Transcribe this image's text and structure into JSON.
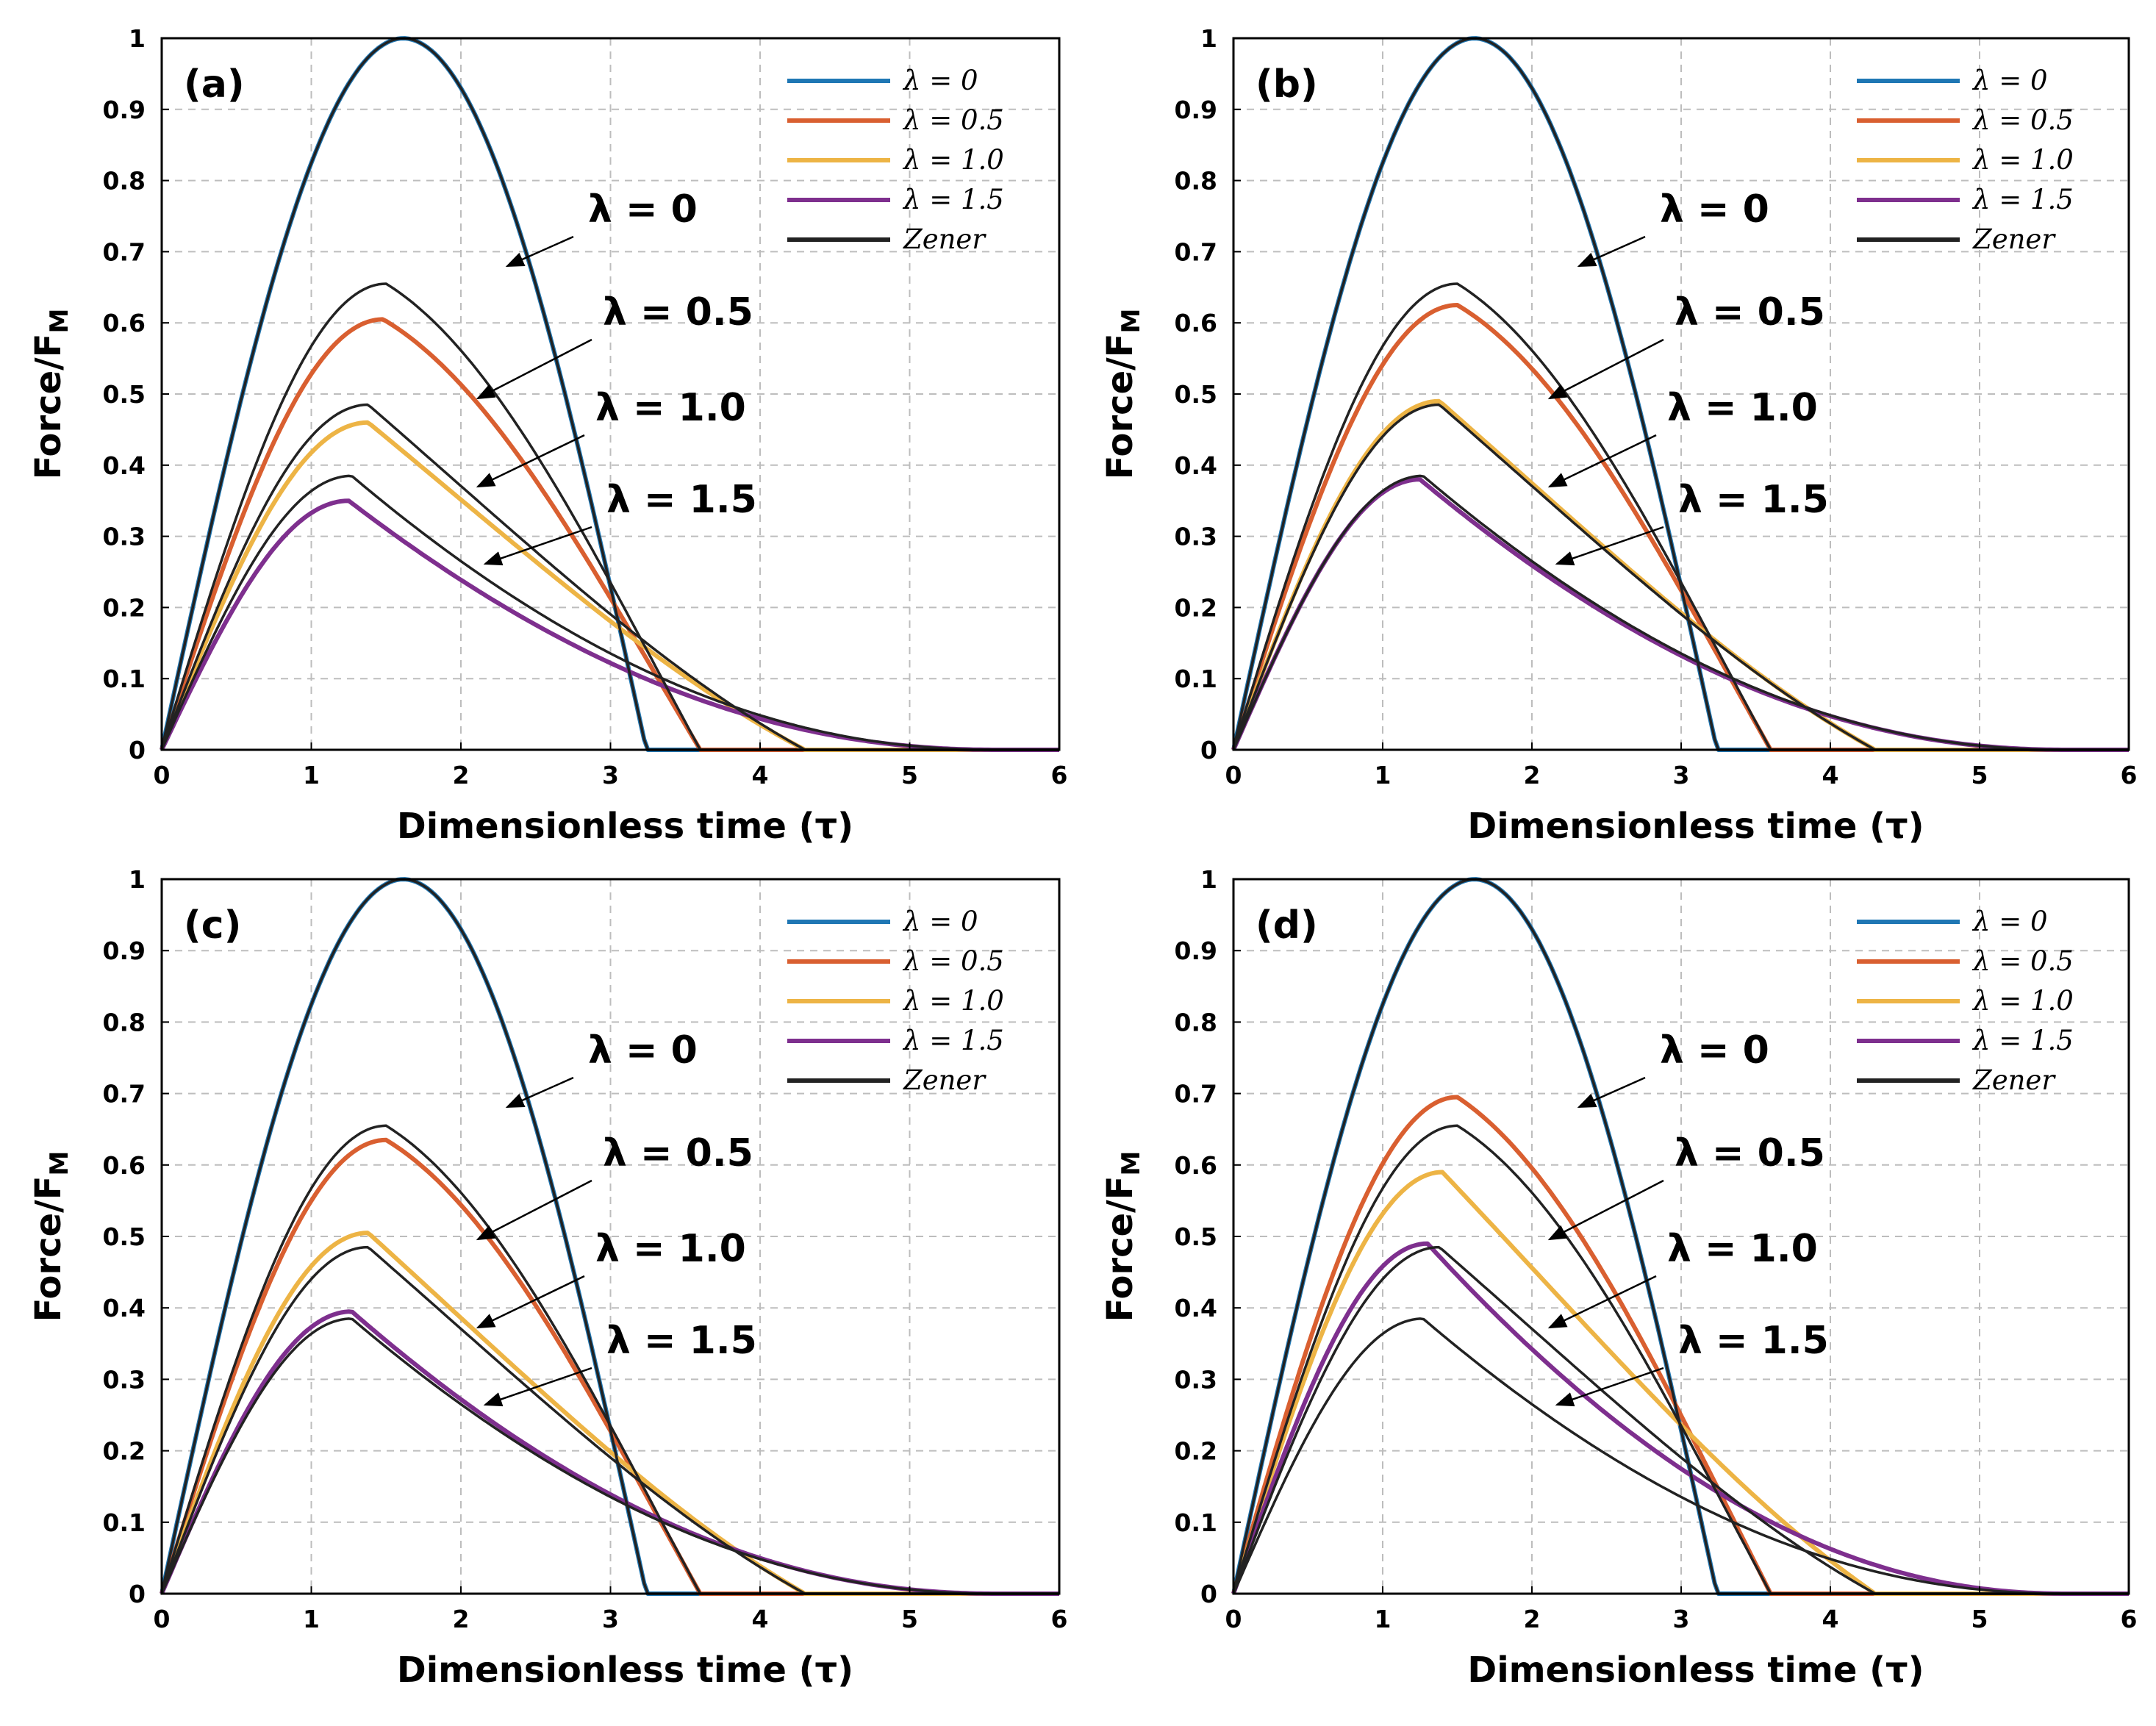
{
  "figure": {
    "xlabel": "Dimensionless time (τ)",
    "ylabel_main": "Force/F",
    "ylabel_sub": "M"
  },
  "chart_data": [
    {
      "type": "line",
      "panel_label": "(a)",
      "xlim": [
        0,
        6
      ],
      "ylim": [
        0,
        1
      ],
      "xticks": [
        "0",
        "1",
        "2",
        "3",
        "4",
        "5",
        "6"
      ],
      "yticks": [
        "0",
        "0.1",
        "0.2",
        "0.3",
        "0.4",
        "0.5",
        "0.6",
        "0.7",
        "0.8",
        "0.9",
        "1"
      ],
      "grid": true,
      "legend_position": "top-right",
      "legend": [
        "λ = 0",
        "λ = 0.5",
        "λ = 1.0",
        "λ = 1.5",
        "Zener"
      ],
      "annotations": [
        "λ = 0",
        "λ = 0.5",
        "λ = 1.0",
        "λ = 1.5"
      ],
      "series": [
        {
          "name": "λ = 0",
          "color": "#1f77b4",
          "peak_x": 1.62,
          "peak_y": 1.0,
          "end_x": 3.24
        },
        {
          "name": "λ = 0.5",
          "color": "#d95f30",
          "peak_x": 1.48,
          "peak_y": 0.605,
          "end_x": 3.6
        },
        {
          "name": "λ = 1.0",
          "color": "#edb445",
          "peak_x": 1.38,
          "peak_y": 0.46,
          "end_x": 4.3
        },
        {
          "name": "λ = 1.5",
          "color": "#7e2f8e",
          "peak_x": 1.25,
          "peak_y": 0.35,
          "end_x": 5.6
        },
        {
          "name": "Zener λ = 0",
          "color": "#222222",
          "peak_x": 1.62,
          "peak_y": 1.0,
          "end_x": 3.24
        },
        {
          "name": "Zener λ = 0.5",
          "color": "#222222",
          "peak_x": 1.5,
          "peak_y": 0.655,
          "end_x": 3.6
        },
        {
          "name": "Zener λ = 1.0",
          "color": "#222222",
          "peak_x": 1.38,
          "peak_y": 0.485,
          "end_x": 4.3
        },
        {
          "name": "Zener λ = 1.5",
          "color": "#222222",
          "peak_x": 1.27,
          "peak_y": 0.385,
          "end_x": 5.6
        }
      ]
    },
    {
      "type": "line",
      "panel_label": "(b)",
      "xlim": [
        0,
        6
      ],
      "ylim": [
        0,
        1
      ],
      "xticks": [
        "0",
        "1",
        "2",
        "3",
        "4",
        "5",
        "6"
      ],
      "yticks": [
        "0",
        "0.1",
        "0.2",
        "0.3",
        "0.4",
        "0.5",
        "0.6",
        "0.7",
        "0.8",
        "0.9",
        "1"
      ],
      "grid": true,
      "legend_position": "top-right",
      "legend": [
        "λ = 0",
        "λ = 0.5",
        "λ = 1.0",
        "λ = 1.5",
        "Zener"
      ],
      "annotations": [
        "λ = 0",
        "λ = 0.5",
        "λ = 1.0",
        "λ = 1.5"
      ],
      "series": [
        {
          "name": "λ = 0",
          "color": "#1f77b4",
          "peak_x": 1.62,
          "peak_y": 1.0,
          "end_x": 3.24
        },
        {
          "name": "λ = 0.5",
          "color": "#d95f30",
          "peak_x": 1.5,
          "peak_y": 0.625,
          "end_x": 3.6
        },
        {
          "name": "λ = 1.0",
          "color": "#edb445",
          "peak_x": 1.38,
          "peak_y": 0.49,
          "end_x": 4.3
        },
        {
          "name": "λ = 1.5",
          "color": "#7e2f8e",
          "peak_x": 1.25,
          "peak_y": 0.38,
          "end_x": 5.6
        },
        {
          "name": "Zener λ = 0",
          "color": "#222222",
          "peak_x": 1.62,
          "peak_y": 1.0,
          "end_x": 3.24
        },
        {
          "name": "Zener λ = 0.5",
          "color": "#222222",
          "peak_x": 1.5,
          "peak_y": 0.655,
          "end_x": 3.6
        },
        {
          "name": "Zener λ = 1.0",
          "color": "#222222",
          "peak_x": 1.38,
          "peak_y": 0.485,
          "end_x": 4.3
        },
        {
          "name": "Zener λ = 1.5",
          "color": "#222222",
          "peak_x": 1.27,
          "peak_y": 0.385,
          "end_x": 5.6
        }
      ]
    },
    {
      "type": "line",
      "panel_label": "(c)",
      "xlim": [
        0,
        6
      ],
      "ylim": [
        0,
        1
      ],
      "xticks": [
        "0",
        "1",
        "2",
        "3",
        "4",
        "5",
        "6"
      ],
      "yticks": [
        "0",
        "0.1",
        "0.2",
        "0.3",
        "0.4",
        "0.5",
        "0.6",
        "0.7",
        "0.8",
        "0.9",
        "1"
      ],
      "grid": true,
      "legend_position": "top-right",
      "legend": [
        "λ = 0",
        "λ = 0.5",
        "λ = 1.0",
        "λ = 1.5",
        "Zener"
      ],
      "annotations": [
        "λ = 0",
        "λ = 0.5",
        "λ = 1.0",
        "λ = 1.5"
      ],
      "series": [
        {
          "name": "λ = 0",
          "color": "#1f77b4",
          "peak_x": 1.62,
          "peak_y": 1.0,
          "end_x": 3.24
        },
        {
          "name": "λ = 0.5",
          "color": "#d95f30",
          "peak_x": 1.5,
          "peak_y": 0.635,
          "end_x": 3.6
        },
        {
          "name": "λ = 1.0",
          "color": "#edb445",
          "peak_x": 1.38,
          "peak_y": 0.505,
          "end_x": 4.3
        },
        {
          "name": "λ = 1.5",
          "color": "#7e2f8e",
          "peak_x": 1.27,
          "peak_y": 0.395,
          "end_x": 5.6
        },
        {
          "name": "Zener λ = 0",
          "color": "#222222",
          "peak_x": 1.62,
          "peak_y": 1.0,
          "end_x": 3.24
        },
        {
          "name": "Zener λ = 0.5",
          "color": "#222222",
          "peak_x": 1.5,
          "peak_y": 0.655,
          "end_x": 3.6
        },
        {
          "name": "Zener λ = 1.0",
          "color": "#222222",
          "peak_x": 1.38,
          "peak_y": 0.485,
          "end_x": 4.3
        },
        {
          "name": "Zener λ = 1.5",
          "color": "#222222",
          "peak_x": 1.27,
          "peak_y": 0.385,
          "end_x": 5.6
        }
      ]
    },
    {
      "type": "line",
      "panel_label": "(d)",
      "xlim": [
        0,
        6
      ],
      "ylim": [
        0,
        1
      ],
      "xticks": [
        "0",
        "1",
        "2",
        "3",
        "4",
        "5",
        "6"
      ],
      "yticks": [
        "0",
        "0.1",
        "0.2",
        "0.3",
        "0.4",
        "0.5",
        "0.6",
        "0.7",
        "0.8",
        "0.9",
        "1"
      ],
      "grid": true,
      "legend_position": "top-right",
      "legend": [
        "λ = 0",
        "λ = 0.5",
        "λ = 1.0",
        "λ = 1.5",
        "Zener"
      ],
      "annotations": [
        "λ = 0",
        "λ = 0.5",
        "λ = 1.0",
        "λ = 1.5"
      ],
      "series": [
        {
          "name": "λ = 0",
          "color": "#1f77b4",
          "peak_x": 1.62,
          "peak_y": 1.0,
          "end_x": 3.24
        },
        {
          "name": "λ = 0.5",
          "color": "#d95f30",
          "peak_x": 1.5,
          "peak_y": 0.695,
          "end_x": 3.6
        },
        {
          "name": "λ = 1.0",
          "color": "#edb445",
          "peak_x": 1.4,
          "peak_y": 0.59,
          "end_x": 4.3
        },
        {
          "name": "λ = 1.5",
          "color": "#7e2f8e",
          "peak_x": 1.3,
          "peak_y": 0.49,
          "end_x": 5.6
        },
        {
          "name": "Zener λ = 0",
          "color": "#222222",
          "peak_x": 1.62,
          "peak_y": 1.0,
          "end_x": 3.24
        },
        {
          "name": "Zener λ = 0.5",
          "color": "#222222",
          "peak_x": 1.5,
          "peak_y": 0.655,
          "end_x": 3.6
        },
        {
          "name": "Zener λ = 1.0",
          "color": "#222222",
          "peak_x": 1.38,
          "peak_y": 0.485,
          "end_x": 4.3
        },
        {
          "name": "Zener λ = 1.5",
          "color": "#222222",
          "peak_x": 1.27,
          "peak_y": 0.385,
          "end_x": 5.6
        }
      ]
    }
  ]
}
